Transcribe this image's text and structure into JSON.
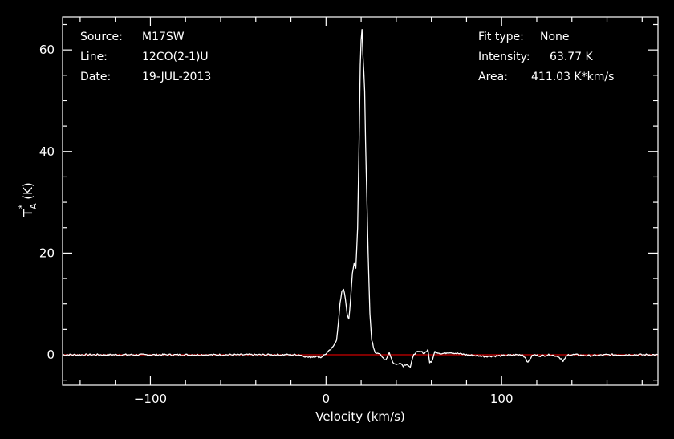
{
  "header": {
    "source_label": "Source:",
    "source_value": "M17SW",
    "line_label": "Line:",
    "line_value": "12CO(2-1)U",
    "date_label": "Date:",
    "date_value": "19-JUL-2013",
    "fit_label": "Fit type:",
    "fit_value": "None",
    "intensity_label": "Intensity:",
    "intensity_value": "63.77 K",
    "area_label": "Area:",
    "area_value": "411.03 K*km/s"
  },
  "colors": {
    "background": "#000000",
    "foreground": "#ffffff",
    "baseline": "#cc0000"
  },
  "chart_data": {
    "type": "line",
    "title": "",
    "xlabel": "Velocity (km/s)",
    "ylabel_main": "T",
    "ylabel_sub": "A",
    "ylabel_sup": "*",
    "ylabel_unit": "(K)",
    "xlim": [
      -150,
      189
    ],
    "ylim": [
      -6,
      66.5
    ],
    "xticks": [
      -100,
      0,
      100
    ],
    "xtick_labels": [
      "−100",
      "0",
      "100"
    ],
    "yticks": [
      0,
      20,
      40,
      60
    ],
    "ytick_labels": [
      "0",
      "20",
      "40",
      "60"
    ],
    "grid": false,
    "baseline_y": 0,
    "series": [
      {
        "x": [
          -150,
          -15,
          -10,
          -6,
          -3,
          0,
          2,
          4,
          6,
          7,
          8,
          9,
          10,
          11,
          12,
          13,
          14,
          15,
          16,
          17,
          18,
          19,
          19.5,
          20,
          20.5,
          21,
          21.5,
          22,
          22.5,
          23,
          24,
          25,
          26,
          27,
          28,
          30,
          32,
          34,
          36,
          38,
          40,
          42,
          44,
          46,
          48,
          50,
          52,
          54,
          56,
          58,
          59,
          60,
          62,
          66,
          70,
          76,
          80,
          90,
          100,
          108,
          112,
          114,
          115,
          116,
          118,
          122,
          128,
          132,
          134,
          135,
          136,
          138,
          142,
          150,
          160,
          175,
          189
        ],
        "y": [
          0,
          0,
          -0.5,
          -0.3,
          -0.5,
          0.2,
          0.8,
          1.5,
          3,
          6,
          10,
          12.5,
          13,
          11,
          8,
          7,
          11,
          16,
          18,
          17,
          25,
          45,
          57,
          62,
          64,
          59,
          56,
          52,
          42,
          34,
          20,
          8,
          3,
          1.5,
          0.5,
          0.3,
          -0.5,
          -1,
          0.5,
          -1.5,
          -2,
          -1.5,
          -2.2,
          -1.8,
          -2.5,
          0.2,
          0.5,
          0.6,
          0.3,
          1,
          -1.5,
          -1.5,
          0.6,
          0.2,
          0.5,
          0.2,
          0,
          -0.3,
          -0.2,
          0,
          0,
          -0.8,
          -1.6,
          -0.8,
          0,
          -0.2,
          0,
          -0.3,
          -0.8,
          -1.4,
          -0.7,
          0,
          0,
          -0.2,
          0,
          0,
          0
        ]
      }
    ]
  }
}
